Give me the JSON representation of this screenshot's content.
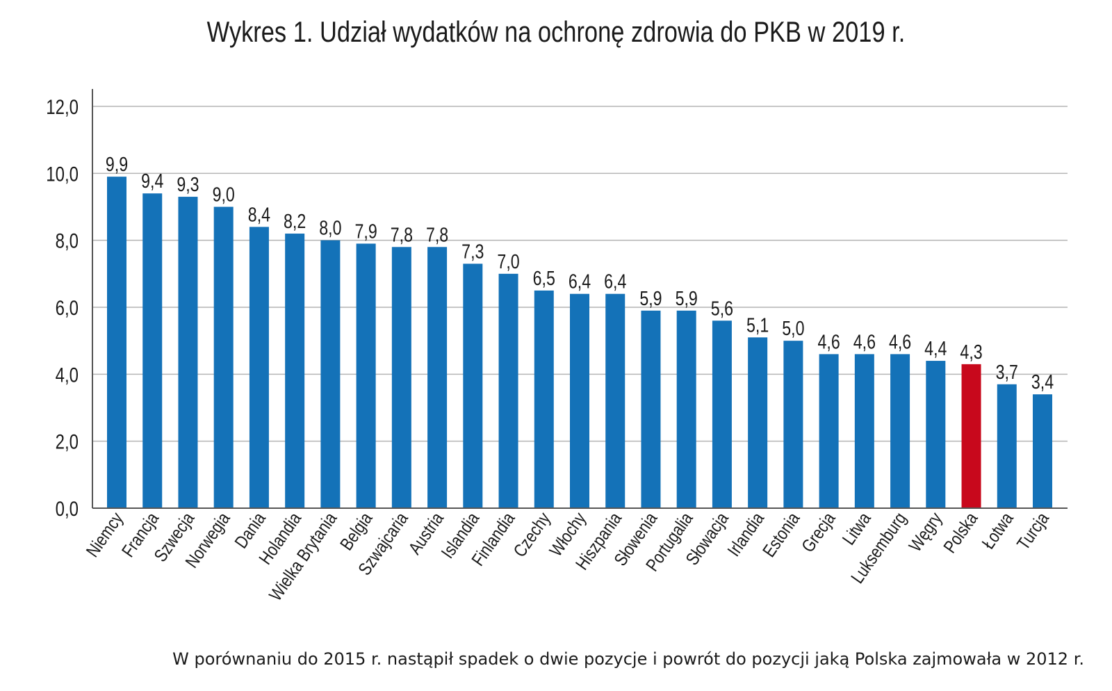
{
  "chart_data": {
    "type": "bar",
    "title": "Wykres 1. Udział wydatków na ochronę zdrowia do PKB w 2019 r.",
    "xlabel": "",
    "ylabel": "",
    "ylim": [
      0,
      12
    ],
    "yticks": [
      "0,0",
      "2,0",
      "4,0",
      "6,0",
      "8,0",
      "10,0",
      "12,0"
    ],
    "categories": [
      "Niemcy",
      "Francja",
      "Szwecja",
      "Norwegia",
      "Dania",
      "Holandia",
      "Wielka Brytania",
      "Belgia",
      "Szwajcaria",
      "Austria",
      "Islandia",
      "Finlandia",
      "Czechy",
      "Włochy",
      "Hiszpania",
      "Słowenia",
      "Portugalia",
      "Słowacja",
      "Irlandia",
      "Estonia",
      "Grecja",
      "Litwa",
      "Luksemburg",
      "Węgry",
      "Polska",
      "Łotwa",
      "Turcja"
    ],
    "values": [
      9.9,
      9.4,
      9.3,
      9.0,
      8.4,
      8.2,
      8.0,
      7.9,
      7.8,
      7.8,
      7.3,
      7.0,
      6.5,
      6.4,
      6.4,
      5.9,
      5.9,
      5.6,
      5.1,
      5.0,
      4.6,
      4.6,
      4.6,
      4.4,
      4.3,
      3.7,
      3.4
    ],
    "labels": [
      "9,9",
      "9,4",
      "9,3",
      "9,0",
      "8,4",
      "8,2",
      "8,0",
      "7,9",
      "7,8",
      "7,8",
      "7,3",
      "7,0",
      "6,5",
      "6,4",
      "6,4",
      "5,9",
      "5,9",
      "5,6",
      "5,1",
      "5,0",
      "4,6",
      "4,6",
      "4,6",
      "4,4",
      "4,3",
      "3,7",
      "3,4"
    ],
    "highlight": "Polska",
    "colors": {
      "bar": "#1472b8",
      "highlight": "#c8081c",
      "grid": "#b4b4b4",
      "axis": "#555555"
    },
    "grid": true,
    "legend": "none"
  },
  "footnote": "W porównaniu do 2015 r. nastąpił spadek o dwie pozycje i powrót do pozycji jaką Polska zajmowała w 2012 r."
}
